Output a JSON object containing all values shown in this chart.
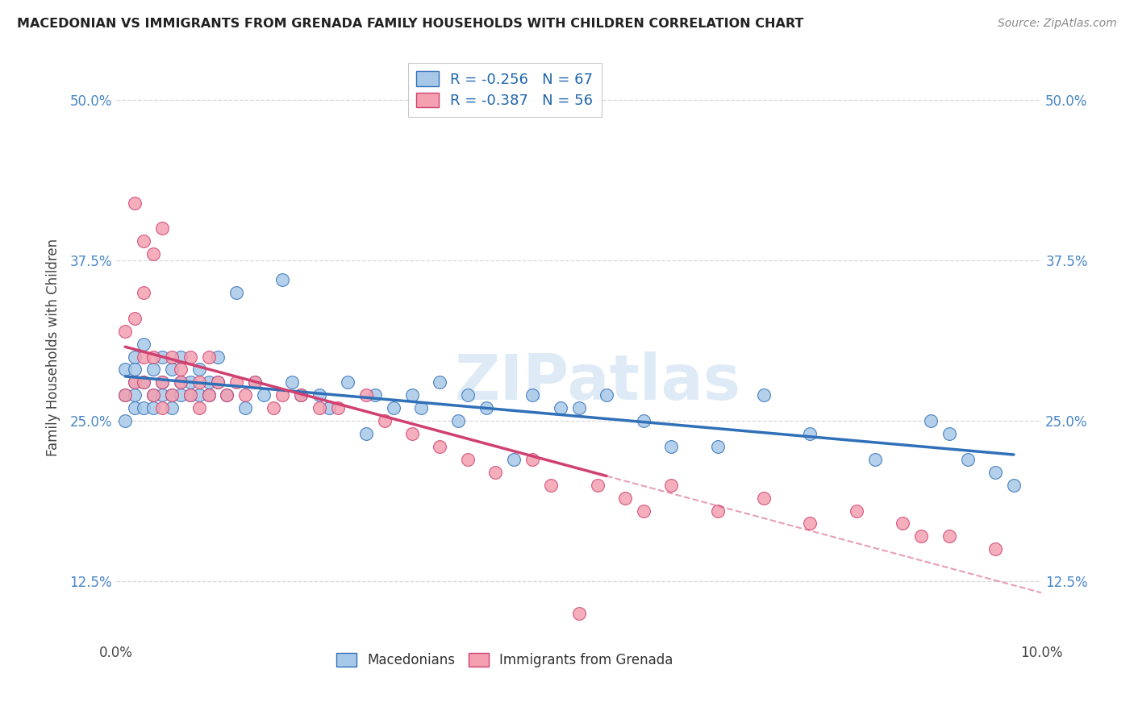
{
  "title": "MACEDONIAN VS IMMIGRANTS FROM GRENADA FAMILY HOUSEHOLDS WITH CHILDREN CORRELATION CHART",
  "source": "Source: ZipAtlas.com",
  "ylabel": "Family Households with Children",
  "xlim": [
    0.0,
    0.1
  ],
  "ylim": [
    0.08,
    0.535
  ],
  "yticks": [
    0.125,
    0.25,
    0.375,
    0.5
  ],
  "yticklabels": [
    "12.5%",
    "25.0%",
    "37.5%",
    "50.0%"
  ],
  "macedonian_color": "#a8c8e8",
  "grenada_color": "#f4a0b0",
  "macedonian_R": -0.256,
  "macedonian_N": 67,
  "grenada_R": -0.387,
  "grenada_N": 56,
  "macedonian_trend_color": "#3070b8",
  "grenada_trend_color": "#d04070",
  "tick_color": "#4a86c8",
  "grid_color": "#d8d8d8",
  "watermark": "ZIPatlas",
  "background_color": "#ffffff",
  "mac_x": [
    0.001,
    0.001,
    0.001,
    0.002,
    0.002,
    0.002,
    0.002,
    0.002,
    0.003,
    0.003,
    0.003,
    0.004,
    0.004,
    0.004,
    0.005,
    0.005,
    0.005,
    0.006,
    0.006,
    0.006,
    0.007,
    0.007,
    0.007,
    0.008,
    0.008,
    0.009,
    0.009,
    0.01,
    0.01,
    0.011,
    0.011,
    0.012,
    0.013,
    0.014,
    0.015,
    0.016,
    0.018,
    0.019,
    0.02,
    0.022,
    0.023,
    0.025,
    0.027,
    0.028,
    0.03,
    0.032,
    0.033,
    0.035,
    0.037,
    0.038,
    0.04,
    0.043,
    0.045,
    0.048,
    0.05,
    0.053,
    0.057,
    0.06,
    0.065,
    0.07,
    0.075,
    0.082,
    0.088,
    0.09,
    0.092,
    0.095,
    0.097
  ],
  "mac_y": [
    0.27,
    0.25,
    0.29,
    0.26,
    0.28,
    0.3,
    0.27,
    0.29,
    0.26,
    0.28,
    0.31,
    0.27,
    0.29,
    0.26,
    0.28,
    0.3,
    0.27,
    0.29,
    0.27,
    0.26,
    0.28,
    0.27,
    0.3,
    0.28,
    0.27,
    0.29,
    0.27,
    0.28,
    0.27,
    0.3,
    0.28,
    0.27,
    0.35,
    0.26,
    0.28,
    0.27,
    0.36,
    0.28,
    0.27,
    0.27,
    0.26,
    0.28,
    0.24,
    0.27,
    0.26,
    0.27,
    0.26,
    0.28,
    0.25,
    0.27,
    0.26,
    0.22,
    0.27,
    0.26,
    0.26,
    0.27,
    0.25,
    0.23,
    0.23,
    0.27,
    0.24,
    0.22,
    0.25,
    0.24,
    0.22,
    0.21,
    0.2
  ],
  "gren_x": [
    0.001,
    0.001,
    0.002,
    0.002,
    0.002,
    0.003,
    0.003,
    0.003,
    0.003,
    0.004,
    0.004,
    0.004,
    0.005,
    0.005,
    0.005,
    0.006,
    0.006,
    0.007,
    0.007,
    0.008,
    0.008,
    0.009,
    0.009,
    0.01,
    0.01,
    0.011,
    0.012,
    0.013,
    0.014,
    0.015,
    0.017,
    0.018,
    0.02,
    0.022,
    0.024,
    0.027,
    0.029,
    0.032,
    0.035,
    0.038,
    0.041,
    0.045,
    0.047,
    0.05,
    0.052,
    0.055,
    0.057,
    0.06,
    0.065,
    0.07,
    0.075,
    0.08,
    0.085,
    0.087,
    0.09,
    0.095
  ],
  "gren_y": [
    0.27,
    0.32,
    0.42,
    0.28,
    0.33,
    0.39,
    0.35,
    0.3,
    0.28,
    0.38,
    0.3,
    0.27,
    0.4,
    0.28,
    0.26,
    0.3,
    0.27,
    0.29,
    0.28,
    0.3,
    0.27,
    0.28,
    0.26,
    0.3,
    0.27,
    0.28,
    0.27,
    0.28,
    0.27,
    0.28,
    0.26,
    0.27,
    0.27,
    0.26,
    0.26,
    0.27,
    0.25,
    0.24,
    0.23,
    0.22,
    0.21,
    0.22,
    0.2,
    0.1,
    0.2,
    0.19,
    0.18,
    0.2,
    0.18,
    0.19,
    0.17,
    0.18,
    0.17,
    0.16,
    0.16,
    0.15
  ],
  "mac_trend_x_start": 0.001,
  "mac_trend_x_end": 0.097,
  "gren_trend_solid_x_end": 0.053,
  "gren_trend_x_end": 0.1
}
